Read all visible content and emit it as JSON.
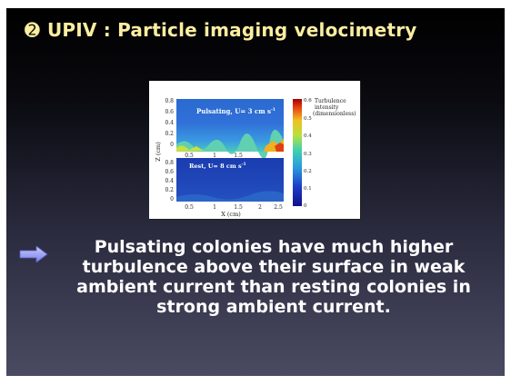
{
  "slide": {
    "title_bullet": "➋",
    "title": "UPIV : Particle imaging velocimetry",
    "body": "Pulsating colonies have much higher turbulence above their surface in weak ambient current than resting colonies in strong ambient current.",
    "arrow_icon": "right-arrow-icon",
    "colors": {
      "title": "#fbeea0",
      "arrow": "#9aa0f0",
      "body": "#ffffff"
    }
  },
  "figure": {
    "panel_top_label": "Pulsating, U= 3 cm s",
    "panel_top_label_sup": "-1",
    "panel_bottom_label": "Rest, U= 8 cm s",
    "panel_bottom_label_sup": "-1",
    "y_axis_label": "Z (cm)",
    "x_axis_label": "X (cm)",
    "y_ticks": [
      "0.8",
      "0.6",
      "0.4",
      "0.2",
      "0"
    ],
    "top_x_ticks": [
      "0.5",
      "1",
      "1.5"
    ],
    "bottom_x_ticks": [
      "0.5",
      "1",
      "1.5",
      "2",
      "2.5"
    ],
    "colorbar_label": [
      "Turbulence",
      "intensity",
      "(dimensionless)"
    ],
    "colorbar_ticks": [
      "0.6",
      "0.5",
      "0.4",
      "0.3",
      "0.2",
      "0.1",
      "0"
    ]
  }
}
